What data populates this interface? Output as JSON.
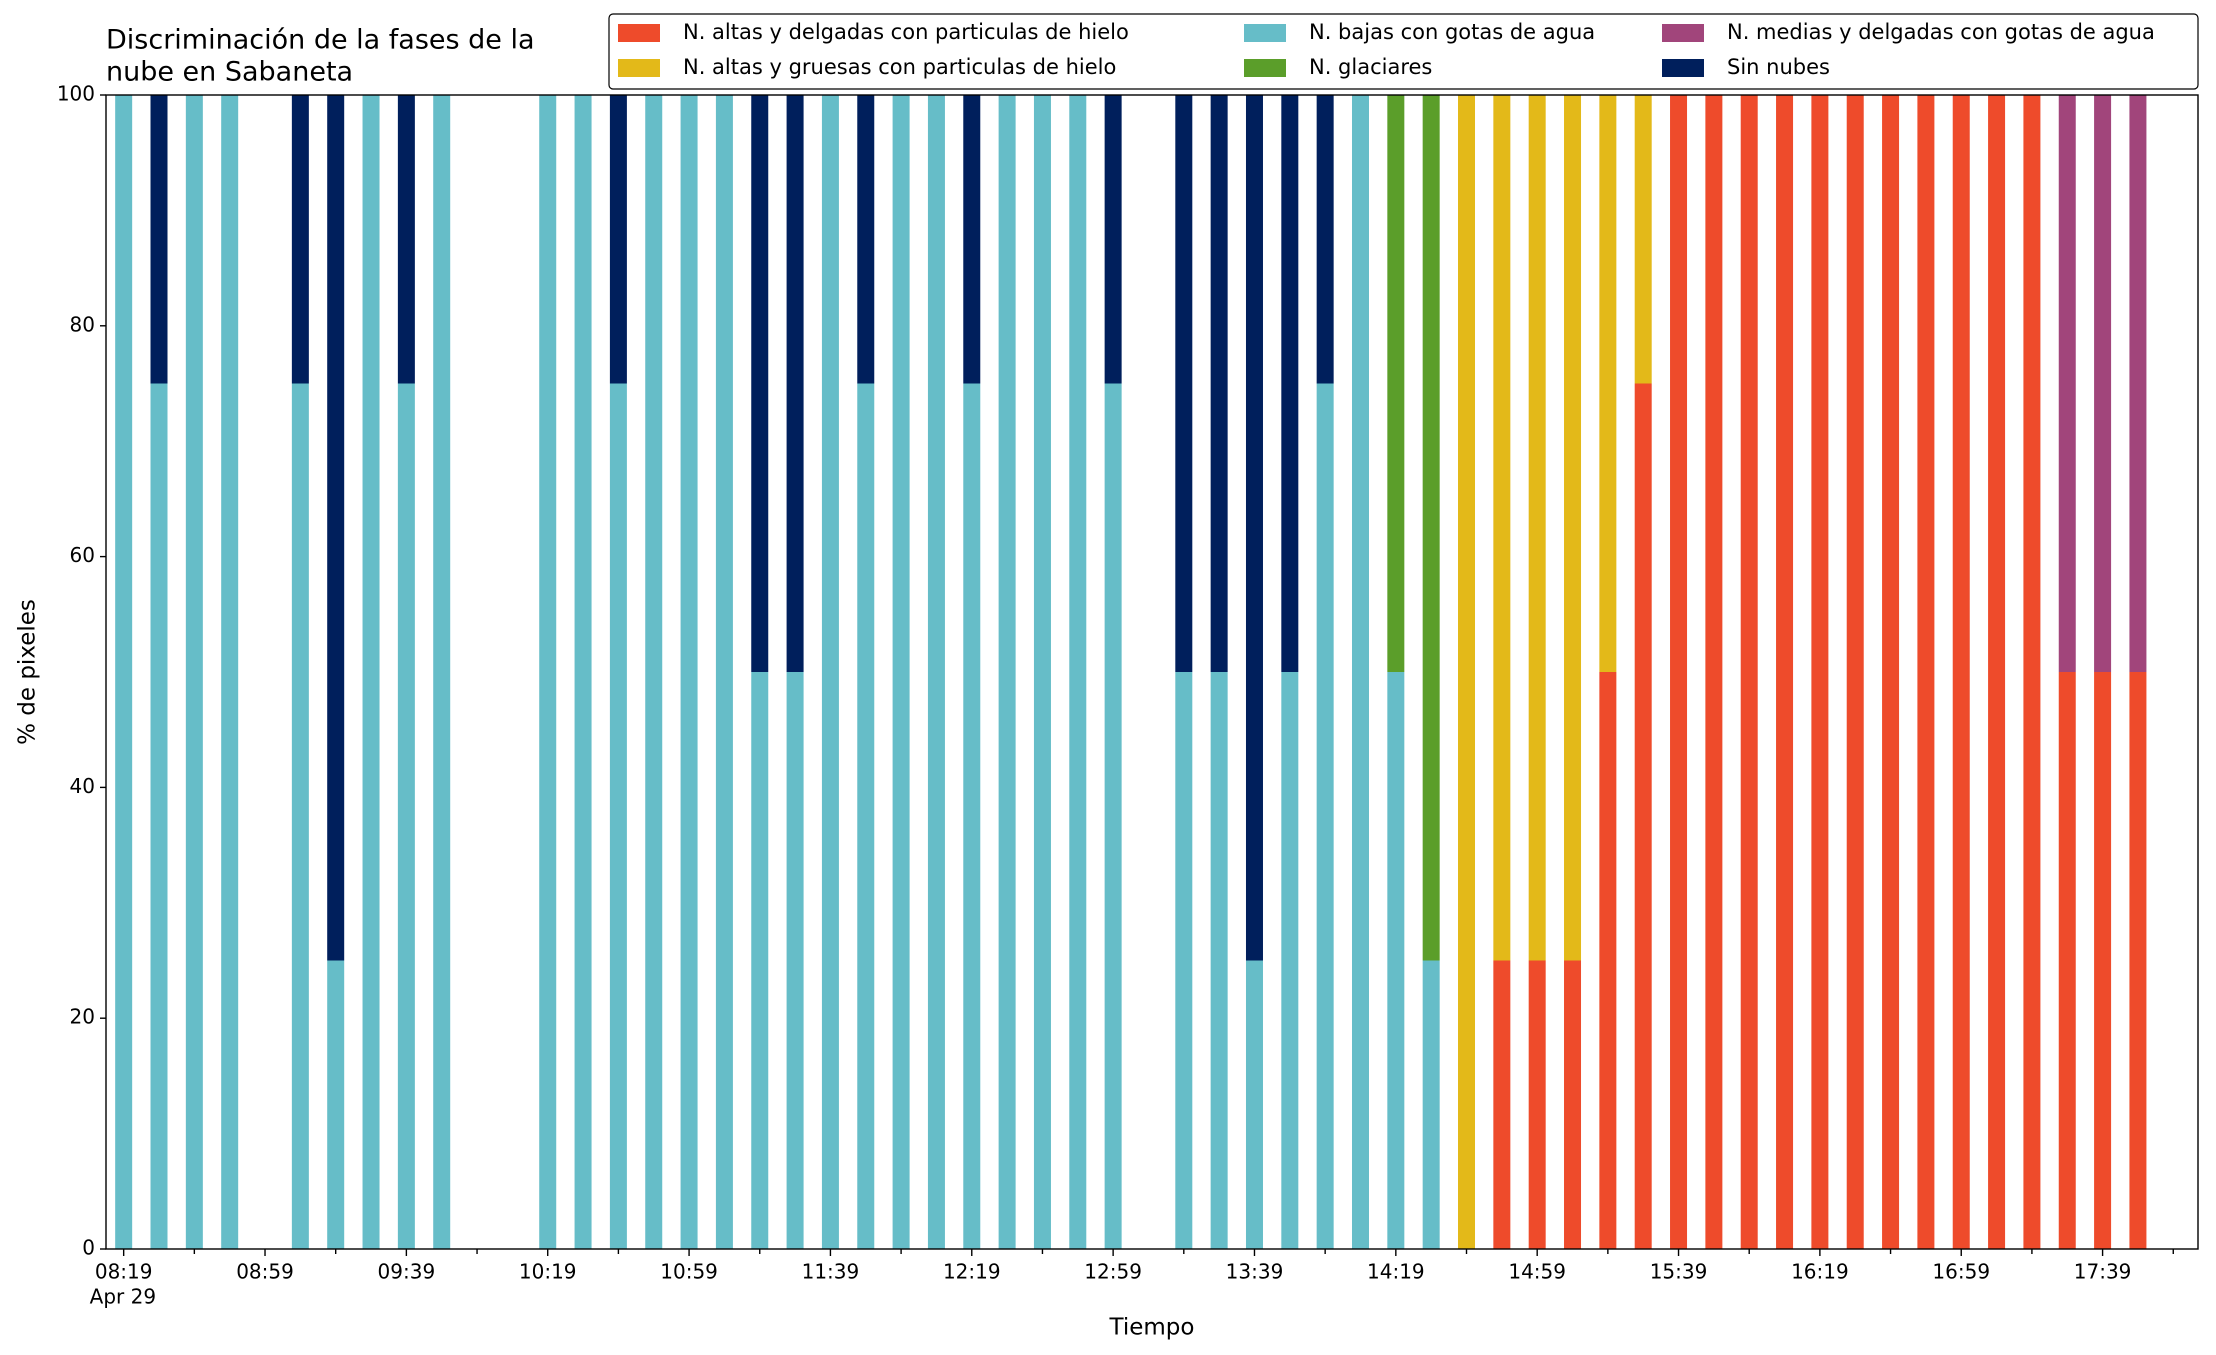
{
  "chart_data": {
    "type": "stacked_bar",
    "title": [
      "Discriminación de la fases de la",
      "nube en Sabaneta"
    ],
    "x_label": "Tiempo",
    "y_label": "% de pixeles",
    "x_date_label": "Apr 29",
    "x": [
      "08:19",
      "08:29",
      "08:39",
      "08:49",
      "09:09",
      "09:19",
      "09:29",
      "09:39",
      "09:49",
      "10:19",
      "10:29",
      "10:39",
      "10:49",
      "10:59",
      "11:09",
      "11:19",
      "11:29",
      "11:39",
      "11:49",
      "11:59",
      "12:09",
      "12:19",
      "12:29",
      "12:39",
      "12:49",
      "12:59",
      "13:19",
      "13:29",
      "13:39",
      "13:49",
      "13:59",
      "14:09",
      "14:19",
      "14:29",
      "14:39",
      "14:49",
      "14:59",
      "15:09",
      "15:19",
      "15:29",
      "15:39",
      "15:49",
      "15:59",
      "16:09",
      "16:19",
      "16:29",
      "16:39",
      "16:49",
      "16:59",
      "17:09",
      "17:19",
      "17:29",
      "17:39",
      "17:49"
    ],
    "xlim": [
      "08:14",
      "18:06"
    ],
    "xticks": [
      "08:19",
      "08:59",
      "09:39",
      "10:19",
      "10:59",
      "11:39",
      "12:19",
      "12:59",
      "13:39",
      "14:19",
      "14:59",
      "15:39",
      "16:19",
      "16:59",
      "17:39"
    ],
    "xminorticks": [
      "08:39",
      "09:19",
      "09:59",
      "10:39",
      "11:19",
      "11:59",
      "12:39",
      "13:19",
      "13:59",
      "14:39",
      "15:19",
      "15:59",
      "16:39",
      "17:19",
      "17:59"
    ],
    "ylim": [
      0,
      100
    ],
    "yticks": [
      0,
      20,
      40,
      60,
      80,
      100
    ],
    "legend_position": "top right",
    "series": [
      {
        "name": "N. altas y delgadas con particulas de hielo",
        "color": "#ee4b2b",
        "values": [
          0,
          0,
          0,
          0,
          0,
          0,
          0,
          0,
          0,
          0,
          0,
          0,
          0,
          0,
          0,
          0,
          0,
          0,
          0,
          0,
          0,
          0,
          0,
          0,
          0,
          0,
          0,
          0,
          0,
          0,
          0,
          0,
          0,
          0,
          0,
          25,
          25,
          25,
          50,
          75,
          100,
          100,
          100,
          100,
          100,
          100,
          100,
          100,
          100,
          100,
          100,
          50,
          50,
          50
        ]
      },
      {
        "name": "N. altas y gruesas con particulas de hielo",
        "color": "#e3b919",
        "values": [
          0,
          0,
          0,
          0,
          0,
          0,
          0,
          0,
          0,
          0,
          0,
          0,
          0,
          0,
          0,
          0,
          0,
          0,
          0,
          0,
          0,
          0,
          0,
          0,
          0,
          0,
          0,
          0,
          0,
          0,
          0,
          0,
          0,
          0,
          100,
          75,
          75,
          75,
          50,
          25,
          0,
          0,
          0,
          0,
          0,
          0,
          0,
          0,
          0,
          0,
          0,
          0,
          0,
          0
        ]
      },
      {
        "name": "N. bajas con gotas de agua",
        "color": "#66bdc8",
        "values": [
          100,
          75,
          100,
          100,
          75,
          25,
          100,
          75,
          100,
          100,
          100,
          75,
          100,
          100,
          100,
          50,
          50,
          100,
          75,
          100,
          100,
          75,
          100,
          100,
          100,
          75,
          50,
          50,
          25,
          50,
          75,
          100,
          50,
          25,
          0,
          0,
          0,
          0,
          0,
          0,
          0,
          0,
          0,
          0,
          0,
          0,
          0,
          0,
          0,
          0,
          0,
          0,
          0,
          0
        ]
      },
      {
        "name": "N. glaciares",
        "color": "#5b9e2a",
        "values": [
          0,
          0,
          0,
          0,
          0,
          0,
          0,
          0,
          0,
          0,
          0,
          0,
          0,
          0,
          0,
          0,
          0,
          0,
          0,
          0,
          0,
          0,
          0,
          0,
          0,
          0,
          0,
          0,
          0,
          0,
          0,
          0,
          50,
          75,
          0,
          0,
          0,
          0,
          0,
          0,
          0,
          0,
          0,
          0,
          0,
          0,
          0,
          0,
          0,
          0,
          0,
          0,
          0,
          0
        ]
      },
      {
        "name": "N. medias y delgadas con gotas de agua",
        "color": "#a1457b",
        "values": [
          0,
          0,
          0,
          0,
          0,
          0,
          0,
          0,
          0,
          0,
          0,
          0,
          0,
          0,
          0,
          0,
          0,
          0,
          0,
          0,
          0,
          0,
          0,
          0,
          0,
          0,
          0,
          0,
          0,
          0,
          0,
          0,
          0,
          0,
          0,
          0,
          0,
          0,
          0,
          0,
          0,
          0,
          0,
          0,
          0,
          0,
          0,
          0,
          0,
          0,
          0,
          50,
          50,
          50
        ]
      },
      {
        "name": "Sin nubes",
        "color": "#001f5c",
        "values": [
          0,
          25,
          0,
          0,
          25,
          75,
          0,
          25,
          0,
          0,
          0,
          25,
          0,
          0,
          0,
          50,
          50,
          0,
          25,
          0,
          0,
          25,
          0,
          0,
          0,
          25,
          50,
          50,
          75,
          50,
          25,
          0,
          0,
          0,
          0,
          0,
          0,
          0,
          0,
          0,
          0,
          0,
          0,
          0,
          0,
          0,
          0,
          0,
          0,
          0,
          0,
          0,
          0,
          0
        ]
      }
    ]
  }
}
